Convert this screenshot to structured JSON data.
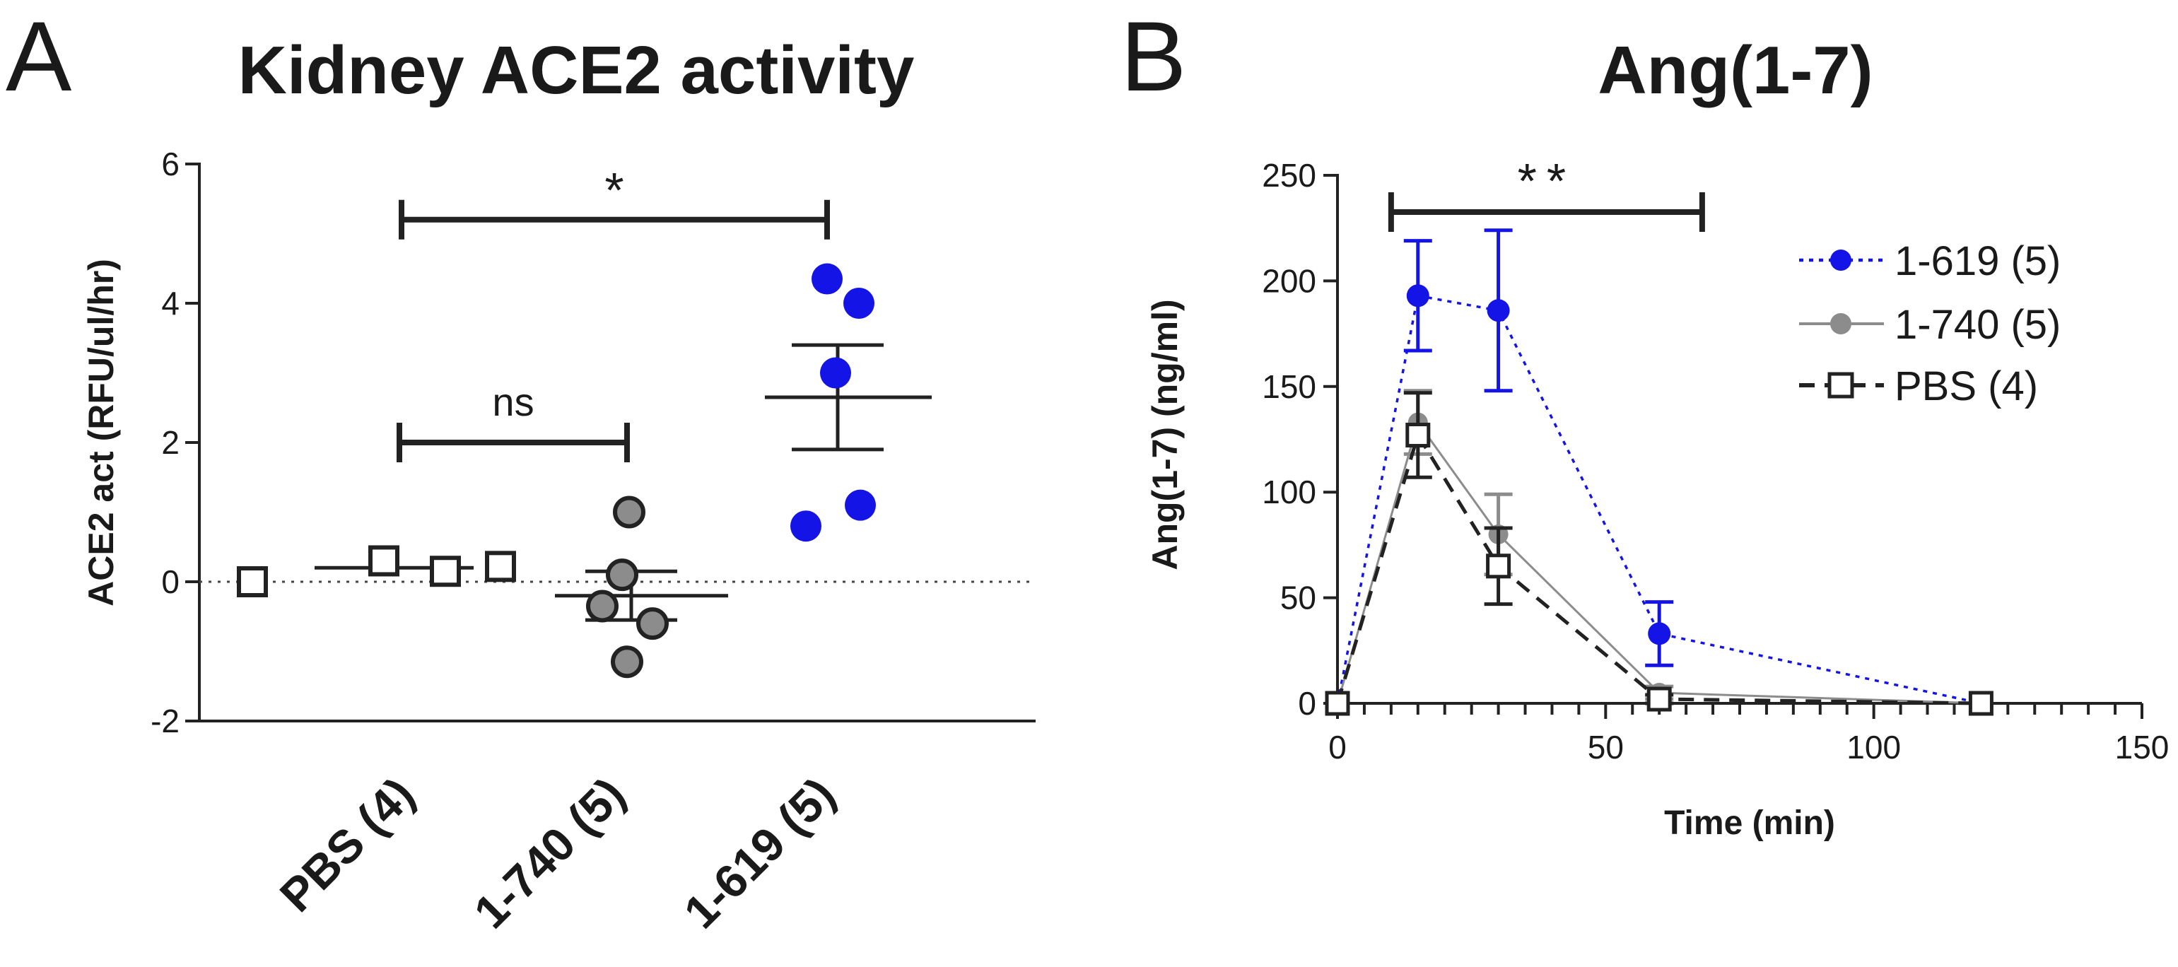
{
  "figure": {
    "panel_a_letter": "A",
    "panel_b_letter": "B"
  },
  "chart_data": [
    {
      "type": "scatter",
      "title": "Kidney ACE2 activity",
      "xlabel": "",
      "ylabel": "ACE2 act (RFU/ul/hr)",
      "ylim": [
        -2,
        6
      ],
      "yticks": [
        -2,
        0,
        2,
        4,
        6
      ],
      "reference_line_y": 0,
      "categories": [
        "PBS (4)",
        "1-740 (5)",
        "1-619 (5)"
      ],
      "groups": [
        {
          "name": "PBS (4)",
          "marker": "open-square",
          "color": "#222222",
          "points": [
            0.0,
            0.3,
            0.15,
            0.22
          ],
          "mean": 0.2,
          "sem": 0.0
        },
        {
          "name": "1-740 (5)",
          "marker": "filled-circle",
          "color": "#8c8c8c",
          "points": [
            1.0,
            0.1,
            -0.35,
            -0.6,
            -1.15
          ],
          "mean": -0.2,
          "sem": 0.35
        },
        {
          "name": "1-619 (5)",
          "marker": "filled-circle",
          "color": "#1414e6",
          "points": [
            4.35,
            4.0,
            3.0,
            1.1,
            0.8
          ],
          "mean": 2.65,
          "sem": 0.75
        }
      ],
      "significance": [
        {
          "from": "PBS (4)",
          "to": "1-740 (5)",
          "label": "ns",
          "y": 2.0
        },
        {
          "from": "PBS (4)",
          "to": "1-619 (5)",
          "label": "*",
          "y": 5.2
        }
      ]
    },
    {
      "type": "line",
      "title": "Ang(1-7)",
      "xlabel": "Time (min)",
      "ylabel": "Ang(1-7) (ng/ml)",
      "xlim": [
        0,
        150
      ],
      "ylim": [
        0,
        250
      ],
      "xticks": [
        0,
        50,
        100,
        150
      ],
      "yticks": [
        0,
        50,
        100,
        150,
        200,
        250
      ],
      "series": [
        {
          "name": "1-619 (5)",
          "color": "#1414e6",
          "line": "dotted",
          "marker": "filled-circle",
          "x": [
            0,
            15,
            30,
            60,
            120
          ],
          "y": [
            0,
            193,
            186,
            33,
            0
          ],
          "err": [
            0,
            26,
            38,
            15,
            0
          ]
        },
        {
          "name": "1-740 (5)",
          "color": "#8c8c8c",
          "line": "solid",
          "marker": "filled-circle",
          "x": [
            0,
            15,
            30,
            60,
            120
          ],
          "y": [
            0,
            133,
            80,
            5,
            0
          ],
          "err": [
            0,
            15,
            19,
            3,
            0
          ]
        },
        {
          "name": "PBS (4)",
          "color": "#222222",
          "line": "dashed",
          "marker": "open-square",
          "x": [
            0,
            15,
            30,
            60,
            120
          ],
          "y": [
            0,
            127,
            65,
            2,
            0
          ],
          "err": [
            0,
            20,
            18,
            2,
            0
          ]
        }
      ],
      "significance": [
        {
          "x_from": 10,
          "x_to": 68,
          "y": 235,
          "label": "**"
        }
      ]
    }
  ]
}
